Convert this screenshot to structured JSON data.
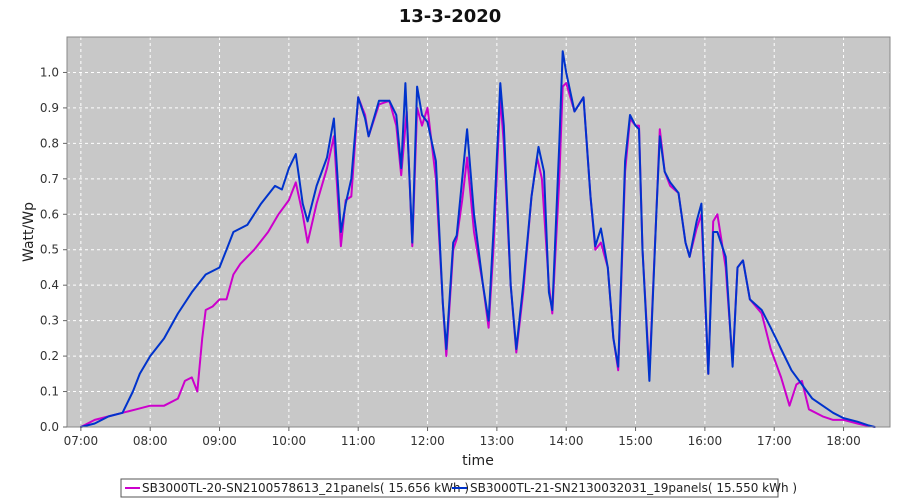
{
  "chart_data": {
    "type": "line",
    "title": "13-3-2020",
    "xlabel": "time",
    "ylabel": "Watt/Wp",
    "x_unit": "hours (time of day)",
    "x_ticks": [
      "07:00",
      "08:00",
      "09:00",
      "10:00",
      "11:00",
      "12:00",
      "13:00",
      "14:00",
      "15:00",
      "16:00",
      "17:00",
      "18:00"
    ],
    "y_ticks": [
      "0.0",
      "0.1",
      "0.2",
      "0.3",
      "0.4",
      "0.5",
      "0.6",
      "0.7",
      "0.8",
      "0.9",
      "1.0"
    ],
    "xlim": [
      6.8,
      18.67
    ],
    "ylim": [
      0,
      1.1
    ],
    "grid": true,
    "legend_position": "bottom",
    "background_color": "#c8c8c8",
    "series": [
      {
        "name": "SB3000TL-20-SN2100578613_21panels( 15.656 kWh )",
        "color": "#cc00cc",
        "points": [
          [
            7.0,
            0.0
          ],
          [
            7.2,
            0.02
          ],
          [
            7.4,
            0.03
          ],
          [
            7.6,
            0.04
          ],
          [
            7.8,
            0.05
          ],
          [
            8.0,
            0.06
          ],
          [
            8.2,
            0.06
          ],
          [
            8.4,
            0.08
          ],
          [
            8.5,
            0.13
          ],
          [
            8.6,
            0.14
          ],
          [
            8.68,
            0.1
          ],
          [
            8.75,
            0.25
          ],
          [
            8.8,
            0.33
          ],
          [
            8.9,
            0.34
          ],
          [
            9.0,
            0.36
          ],
          [
            9.1,
            0.36
          ],
          [
            9.2,
            0.43
          ],
          [
            9.3,
            0.46
          ],
          [
            9.5,
            0.5
          ],
          [
            9.7,
            0.55
          ],
          [
            9.85,
            0.6
          ],
          [
            10.0,
            0.64
          ],
          [
            10.1,
            0.69
          ],
          [
            10.2,
            0.6
          ],
          [
            10.27,
            0.52
          ],
          [
            10.4,
            0.63
          ],
          [
            10.55,
            0.73
          ],
          [
            10.65,
            0.82
          ],
          [
            10.75,
            0.51
          ],
          [
            10.82,
            0.64
          ],
          [
            10.9,
            0.65
          ],
          [
            11.0,
            0.93
          ],
          [
            11.1,
            0.88
          ],
          [
            11.15,
            0.82
          ],
          [
            11.3,
            0.91
          ],
          [
            11.45,
            0.92
          ],
          [
            11.55,
            0.85
          ],
          [
            11.62,
            0.71
          ],
          [
            11.7,
            0.89
          ],
          [
            11.78,
            0.51
          ],
          [
            11.85,
            0.9
          ],
          [
            11.92,
            0.85
          ],
          [
            12.0,
            0.9
          ],
          [
            12.12,
            0.7
          ],
          [
            12.22,
            0.35
          ],
          [
            12.27,
            0.2
          ],
          [
            12.37,
            0.5
          ],
          [
            12.42,
            0.53
          ],
          [
            12.5,
            0.64
          ],
          [
            12.57,
            0.76
          ],
          [
            12.67,
            0.55
          ],
          [
            12.8,
            0.4
          ],
          [
            12.88,
            0.28
          ],
          [
            12.95,
            0.5
          ],
          [
            13.05,
            0.93
          ],
          [
            13.1,
            0.8
          ],
          [
            13.2,
            0.4
          ],
          [
            13.28,
            0.21
          ],
          [
            13.38,
            0.38
          ],
          [
            13.5,
            0.65
          ],
          [
            13.58,
            0.76
          ],
          [
            13.65,
            0.7
          ],
          [
            13.75,
            0.4
          ],
          [
            13.8,
            0.32
          ],
          [
            13.9,
            0.7
          ],
          [
            13.95,
            0.96
          ],
          [
            14.0,
            0.97
          ],
          [
            14.12,
            0.89
          ],
          [
            14.25,
            0.93
          ],
          [
            14.35,
            0.65
          ],
          [
            14.42,
            0.5
          ],
          [
            14.5,
            0.52
          ],
          [
            14.6,
            0.45
          ],
          [
            14.68,
            0.25
          ],
          [
            14.75,
            0.16
          ],
          [
            14.85,
            0.72
          ],
          [
            14.92,
            0.87
          ],
          [
            15.0,
            0.85
          ],
          [
            15.05,
            0.85
          ],
          [
            15.1,
            0.5
          ],
          [
            15.2,
            0.15
          ],
          [
            15.3,
            0.6
          ],
          [
            15.35,
            0.84
          ],
          [
            15.42,
            0.72
          ],
          [
            15.5,
            0.68
          ],
          [
            15.62,
            0.66
          ],
          [
            15.72,
            0.52
          ],
          [
            15.78,
            0.48
          ],
          [
            15.88,
            0.56
          ],
          [
            15.95,
            0.6
          ],
          [
            16.05,
            0.15
          ],
          [
            16.12,
            0.58
          ],
          [
            16.18,
            0.6
          ],
          [
            16.3,
            0.45
          ],
          [
            16.4,
            0.18
          ],
          [
            16.47,
            0.45
          ],
          [
            16.55,
            0.47
          ],
          [
            16.65,
            0.36
          ],
          [
            16.82,
            0.32
          ],
          [
            16.95,
            0.22
          ],
          [
            17.1,
            0.14
          ],
          [
            17.22,
            0.06
          ],
          [
            17.32,
            0.12
          ],
          [
            17.4,
            0.13
          ],
          [
            17.5,
            0.05
          ],
          [
            17.7,
            0.03
          ],
          [
            17.85,
            0.02
          ],
          [
            18.0,
            0.02
          ],
          [
            18.2,
            0.01
          ],
          [
            18.3,
            0.005
          ],
          [
            18.45,
            0.0
          ]
        ]
      },
      {
        "name": "SB3000TL-21-SN2130032031_19panels( 15.550 kWh )",
        "color": "#0033cc",
        "points": [
          [
            7.0,
            0.0
          ],
          [
            7.2,
            0.01
          ],
          [
            7.4,
            0.03
          ],
          [
            7.6,
            0.04
          ],
          [
            7.75,
            0.1
          ],
          [
            7.85,
            0.15
          ],
          [
            8.0,
            0.2
          ],
          [
            8.2,
            0.25
          ],
          [
            8.4,
            0.32
          ],
          [
            8.6,
            0.38
          ],
          [
            8.8,
            0.43
          ],
          [
            9.0,
            0.45
          ],
          [
            9.1,
            0.5
          ],
          [
            9.2,
            0.55
          ],
          [
            9.4,
            0.57
          ],
          [
            9.6,
            0.63
          ],
          [
            9.8,
            0.68
          ],
          [
            9.9,
            0.67
          ],
          [
            10.0,
            0.73
          ],
          [
            10.1,
            0.77
          ],
          [
            10.2,
            0.63
          ],
          [
            10.27,
            0.58
          ],
          [
            10.4,
            0.68
          ],
          [
            10.55,
            0.76
          ],
          [
            10.65,
            0.87
          ],
          [
            10.75,
            0.55
          ],
          [
            10.82,
            0.63
          ],
          [
            10.9,
            0.7
          ],
          [
            11.0,
            0.93
          ],
          [
            11.1,
            0.87
          ],
          [
            11.15,
            0.82
          ],
          [
            11.3,
            0.92
          ],
          [
            11.45,
            0.92
          ],
          [
            11.55,
            0.88
          ],
          [
            11.62,
            0.73
          ],
          [
            11.68,
            0.97
          ],
          [
            11.78,
            0.52
          ],
          [
            11.85,
            0.96
          ],
          [
            11.92,
            0.88
          ],
          [
            12.0,
            0.86
          ],
          [
            12.12,
            0.75
          ],
          [
            12.22,
            0.35
          ],
          [
            12.27,
            0.22
          ],
          [
            12.37,
            0.52
          ],
          [
            12.42,
            0.54
          ],
          [
            12.5,
            0.7
          ],
          [
            12.57,
            0.84
          ],
          [
            12.67,
            0.6
          ],
          [
            12.8,
            0.4
          ],
          [
            12.88,
            0.3
          ],
          [
            12.95,
            0.55
          ],
          [
            13.05,
            0.97
          ],
          [
            13.1,
            0.85
          ],
          [
            13.2,
            0.4
          ],
          [
            13.28,
            0.22
          ],
          [
            13.38,
            0.4
          ],
          [
            13.5,
            0.65
          ],
          [
            13.6,
            0.79
          ],
          [
            13.68,
            0.72
          ],
          [
            13.75,
            0.38
          ],
          [
            13.8,
            0.33
          ],
          [
            13.9,
            0.8
          ],
          [
            13.95,
            1.06
          ],
          [
            14.0,
            1.0
          ],
          [
            14.12,
            0.89
          ],
          [
            14.25,
            0.93
          ],
          [
            14.35,
            0.65
          ],
          [
            14.42,
            0.51
          ],
          [
            14.5,
            0.56
          ],
          [
            14.6,
            0.45
          ],
          [
            14.68,
            0.25
          ],
          [
            14.75,
            0.17
          ],
          [
            14.85,
            0.75
          ],
          [
            14.92,
            0.88
          ],
          [
            15.0,
            0.85
          ],
          [
            15.05,
            0.84
          ],
          [
            15.1,
            0.5
          ],
          [
            15.2,
            0.13
          ],
          [
            15.3,
            0.6
          ],
          [
            15.35,
            0.82
          ],
          [
            15.42,
            0.72
          ],
          [
            15.5,
            0.69
          ],
          [
            15.62,
            0.66
          ],
          [
            15.72,
            0.52
          ],
          [
            15.78,
            0.48
          ],
          [
            15.88,
            0.58
          ],
          [
            15.95,
            0.63
          ],
          [
            16.05,
            0.15
          ],
          [
            16.12,
            0.55
          ],
          [
            16.18,
            0.55
          ],
          [
            16.3,
            0.48
          ],
          [
            16.4,
            0.17
          ],
          [
            16.47,
            0.45
          ],
          [
            16.55,
            0.47
          ],
          [
            16.65,
            0.36
          ],
          [
            16.82,
            0.33
          ],
          [
            16.95,
            0.28
          ],
          [
            17.1,
            0.22
          ],
          [
            17.25,
            0.16
          ],
          [
            17.4,
            0.12
          ],
          [
            17.55,
            0.08
          ],
          [
            17.7,
            0.06
          ],
          [
            17.85,
            0.04
          ],
          [
            18.0,
            0.025
          ],
          [
            18.2,
            0.015
          ],
          [
            18.35,
            0.005
          ],
          [
            18.45,
            0.0
          ]
        ]
      }
    ]
  }
}
